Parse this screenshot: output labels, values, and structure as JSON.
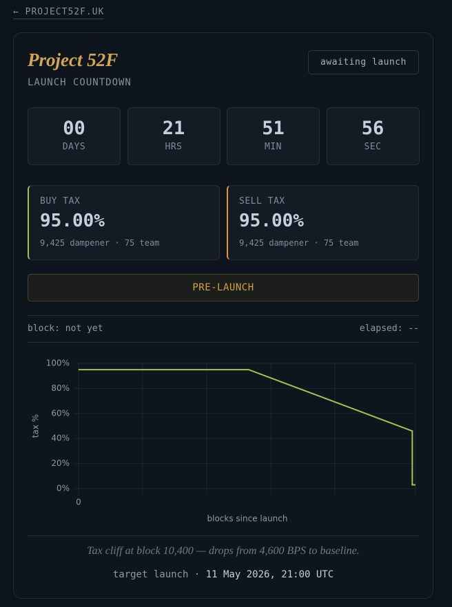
{
  "nav": {
    "back_link": "← PROJECT52F.UK"
  },
  "header": {
    "title": "Project 52F",
    "subtitle": "LAUNCH COUNTDOWN",
    "status": "awaiting launch"
  },
  "countdown": [
    {
      "value": "00",
      "unit": "DAYS"
    },
    {
      "value": "21",
      "unit": "HRS"
    },
    {
      "value": "51",
      "unit": "MIN"
    },
    {
      "value": "56",
      "unit": "SEC"
    }
  ],
  "taxes": [
    {
      "label": "BUY TAX",
      "value": "95.00%",
      "detail": "9,425 dampener · 75 team"
    },
    {
      "label": "SELL TAX",
      "value": "95.00%",
      "detail": "9,425 dampener · 75 team"
    }
  ],
  "phase_button": "PRE-LAUNCH",
  "block_status": {
    "block": "block: not yet",
    "elapsed": "elapsed: --"
  },
  "chart_data": {
    "type": "line",
    "xlabel": "blocks since launch",
    "ylabel": "tax %",
    "x": [
      0,
      5300,
      10400,
      10400,
      10500
    ],
    "series": [
      {
        "color": "#a3c455",
        "values": [
          95,
          95,
          46,
          3,
          3
        ]
      }
    ],
    "xlim": [
      0,
      10500
    ],
    "xticks": [
      0
    ],
    "ylim": [
      0,
      100
    ],
    "yticks": [
      {
        "value": 0,
        "label": "0%"
      },
      {
        "value": 20,
        "label": "20%"
      },
      {
        "value": 40,
        "label": "40%"
      },
      {
        "value": 60,
        "label": "60%"
      },
      {
        "value": 80,
        "label": "80%"
      },
      {
        "value": 100,
        "label": "100%"
      }
    ],
    "grid": true
  },
  "caption": "Tax cliff at block 10,400 — drops from 4,600 BPS to baseline.",
  "footer": {
    "label": "target launch ·",
    "date": "11 May 2026, 21:00 UTC"
  }
}
